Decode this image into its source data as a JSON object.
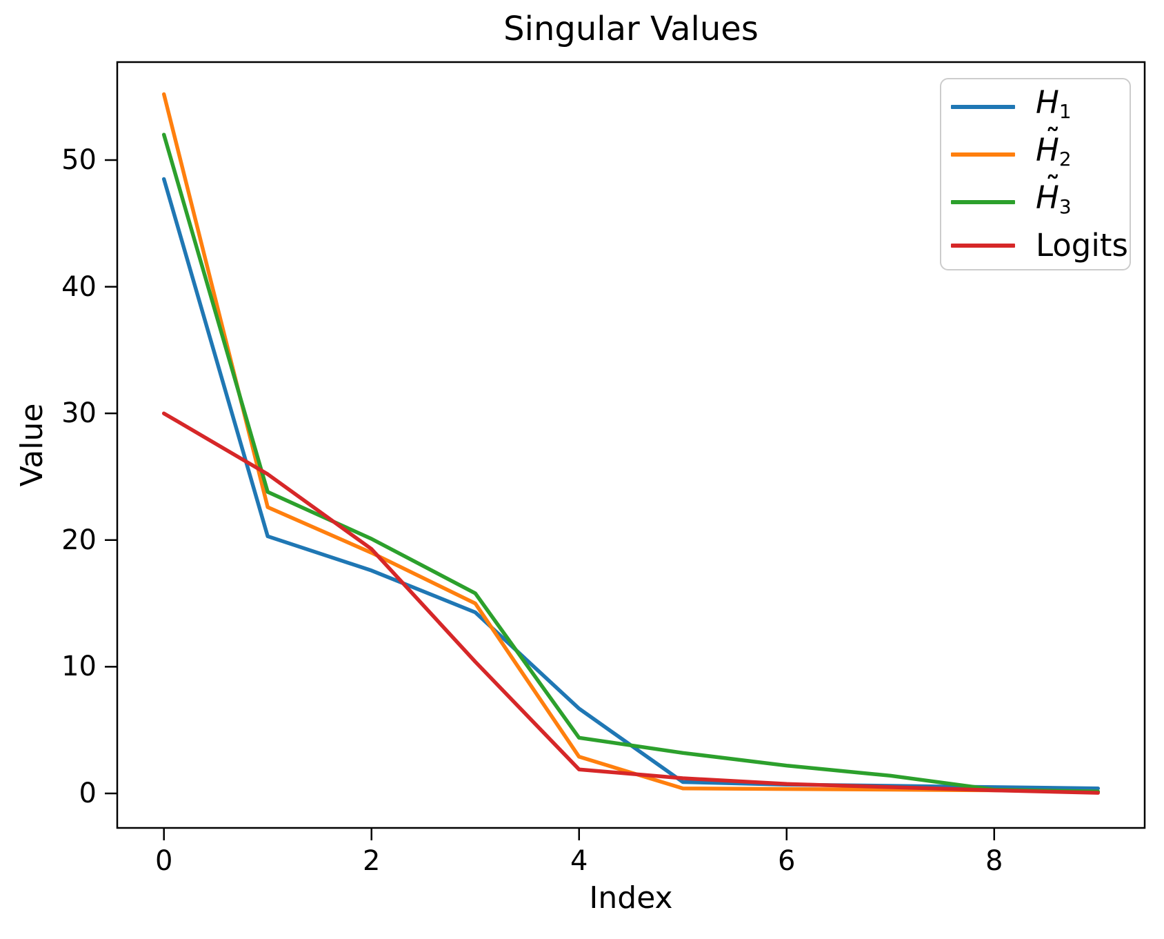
{
  "chart_data": {
    "type": "line",
    "title": "Singular Values",
    "xlabel": "Index",
    "ylabel": "Value",
    "x": [
      0,
      1,
      2,
      3,
      4,
      5,
      6,
      7,
      8,
      9
    ],
    "xlim": [
      -0.45,
      9.45
    ],
    "ylim": [
      -2.72,
      57.73
    ],
    "grid": false,
    "legend_position": "upper right",
    "x_ticks": {
      "values": [
        0,
        2,
        4,
        6,
        8
      ],
      "labels": [
        "0",
        "2",
        "4",
        "6",
        "8"
      ]
    },
    "y_ticks": {
      "values": [
        0,
        10,
        20,
        30,
        40,
        50
      ],
      "labels": [
        "0",
        "10",
        "20",
        "30",
        "40",
        "50"
      ]
    },
    "series": [
      {
        "id": "h1",
        "name": "H₁",
        "name_parts": {
          "base": "H",
          "tilde": false,
          "subscript": "1",
          "italic": true
        },
        "color": "#1f77b4",
        "values": [
          48.5,
          20.3,
          17.6,
          14.3,
          6.7,
          0.9,
          0.7,
          0.6,
          0.5,
          0.4
        ]
      },
      {
        "id": "h2-tilde",
        "name": "H̃₂",
        "name_parts": {
          "base": "H",
          "tilde": true,
          "subscript": "2",
          "italic": true
        },
        "color": "#ff7f0e",
        "values": [
          55.2,
          22.6,
          19.0,
          15.0,
          2.9,
          0.4,
          0.35,
          0.3,
          0.25,
          0.15
        ]
      },
      {
        "id": "h3-tilde",
        "name": "H̃₃",
        "name_parts": {
          "base": "H",
          "tilde": true,
          "subscript": "3",
          "italic": true
        },
        "color": "#2ca02c",
        "values": [
          52.0,
          23.8,
          20.1,
          15.8,
          4.4,
          3.2,
          2.2,
          1.4,
          0.3,
          0.15
        ]
      },
      {
        "id": "logits",
        "name": "Logits",
        "name_parts": {
          "base": "Logits",
          "tilde": false,
          "subscript": "",
          "italic": false
        },
        "color": "#d62728",
        "values": [
          30.0,
          25.2,
          19.3,
          10.4,
          1.9,
          1.2,
          0.75,
          0.5,
          0.25,
          0.05
        ]
      }
    ]
  }
}
